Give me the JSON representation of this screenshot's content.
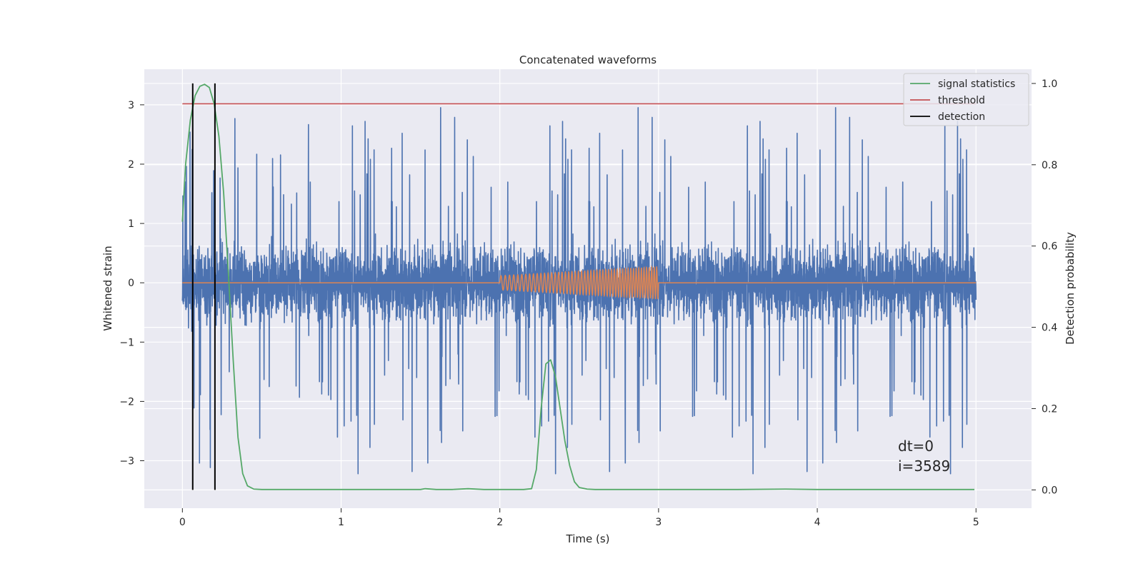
{
  "chart_data": {
    "type": "line",
    "title": "Concatenated waveforms",
    "xlabel": "Time (s)",
    "ylabel_left": "Whitened strain",
    "ylabel_right": "Detection probability",
    "xlim": [
      -0.24,
      5.35
    ],
    "ylim_left": [
      -3.8,
      3.6
    ],
    "ylim_right": [
      -0.045,
      1.035
    ],
    "x_ticks": [
      "0",
      "1",
      "2",
      "3",
      "4",
      "5"
    ],
    "y_ticks_left": [
      "−3",
      "−2",
      "−1",
      "0",
      "1",
      "2",
      "3"
    ],
    "y_ticks_right": [
      "0.0",
      "0.2",
      "0.4",
      "0.6",
      "0.8",
      "1.0"
    ],
    "grid": true,
    "legend_position": "top-right",
    "series": [
      {
        "name": "",
        "axis": "left",
        "color": "#4c72b0",
        "kind": "whitened noise",
        "t_range": [
          0,
          5
        ],
        "typical_abs_amplitude": 0.65,
        "spike_range": [
          -3.45,
          3.4
        ]
      },
      {
        "name": "",
        "axis": "left",
        "color": "#dd8452",
        "kind": "injected chirp",
        "t_range": [
          0,
          5
        ],
        "chirp_t_range": [
          2.0,
          3.0
        ],
        "chirp_amplitude_start": 0.12,
        "chirp_amplitude_end": 0.27
      },
      {
        "name": "signal statistics",
        "axis": "right",
        "color": "#55a868",
        "x": [
          0.0,
          0.02,
          0.05,
          0.08,
          0.11,
          0.14,
          0.17,
          0.2,
          0.23,
          0.26,
          0.29,
          0.32,
          0.35,
          0.38,
          0.41,
          0.45,
          0.5,
          1.0,
          1.5,
          1.53,
          1.6,
          1.7,
          1.8,
          1.9,
          2.0,
          2.15,
          2.2,
          2.23,
          2.26,
          2.29,
          2.32,
          2.35,
          2.38,
          2.41,
          2.44,
          2.47,
          2.5,
          2.55,
          2.6,
          3.0,
          3.5,
          3.8,
          4.0,
          4.5,
          4.99
        ],
        "y": [
          0.66,
          0.8,
          0.91,
          0.97,
          0.993,
          0.998,
          0.99,
          0.95,
          0.87,
          0.73,
          0.53,
          0.32,
          0.13,
          0.04,
          0.01,
          0.002,
          0.001,
          0.001,
          0.001,
          0.003,
          0.001,
          0.001,
          0.003,
          0.001,
          0.001,
          0.001,
          0.003,
          0.05,
          0.2,
          0.31,
          0.32,
          0.28,
          0.2,
          0.12,
          0.06,
          0.02,
          0.006,
          0.002,
          0.001,
          0.001,
          0.001,
          0.002,
          0.001,
          0.001,
          0.001
        ]
      },
      {
        "name": "threshold",
        "axis": "right",
        "color": "#c44e52",
        "x": [
          0,
          5
        ],
        "y": [
          0.95,
          0.95
        ]
      },
      {
        "name": "detection",
        "axis": "right",
        "color": "#000000",
        "vlines": [
          0.065,
          0.205
        ],
        "vline_ylim_right": [
          0.0,
          1.0
        ]
      }
    ],
    "annotations": [
      "dt=0",
      "i=3589"
    ]
  }
}
